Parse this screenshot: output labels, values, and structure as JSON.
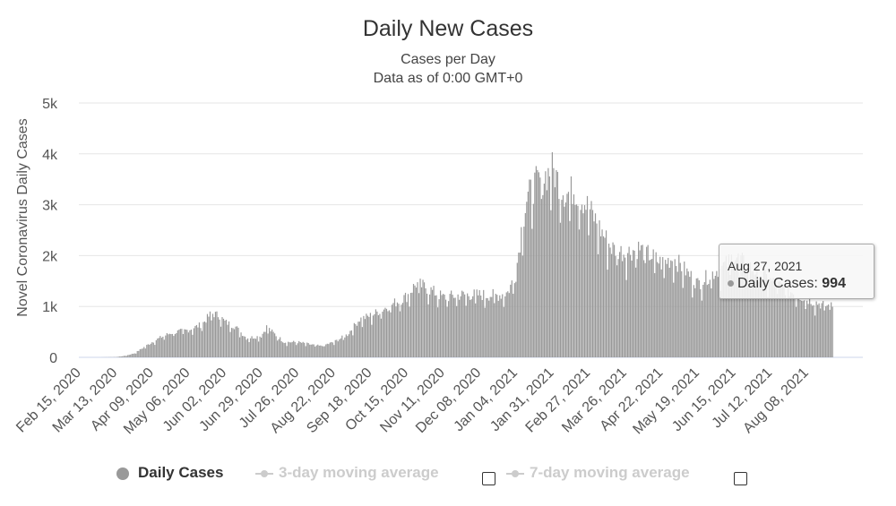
{
  "chart_data": {
    "type": "bar",
    "title": "Daily New Cases",
    "subtitle_lines": [
      "Cases per Day",
      "Data as of 0:00 GMT+0"
    ],
    "ylabel": "Novel Coronavirus Daily Cases",
    "xlabel": "",
    "ylim": [
      0,
      5000
    ],
    "yticks": [
      "0",
      "1k",
      "2k",
      "3k",
      "4k",
      "5k"
    ],
    "ytick_values": [
      0,
      1000,
      2000,
      3000,
      4000,
      5000
    ],
    "x_tick_labels": [
      "Feb 15, 2020",
      "Mar 13, 2020",
      "Apr 09, 2020",
      "May 06, 2020",
      "Jun 02, 2020",
      "Jun 29, 2020",
      "Jul 26, 2020",
      "Aug 22, 2020",
      "Sep 18, 2020",
      "Oct 15, 2020",
      "Nov 11, 2020",
      "Dec 08, 2020",
      "Jan 04, 2021",
      "Jan 31, 2021",
      "Feb 27, 2021",
      "Mar 26, 2021",
      "Apr 22, 2021",
      "May 19, 2021",
      "Jun 15, 2021",
      "Jul 12, 2021",
      "Aug 08, 2021"
    ],
    "series_points": [
      {
        "date": "Feb 15, 2020",
        "value": 0
      },
      {
        "date": "Mar 01, 2020",
        "value": 0
      },
      {
        "date": "Mar 13, 2020",
        "value": 5
      },
      {
        "date": "Mar 20, 2020",
        "value": 30
      },
      {
        "date": "Mar 27, 2020",
        "value": 80
      },
      {
        "date": "Apr 03, 2020",
        "value": 200
      },
      {
        "date": "Apr 09, 2020",
        "value": 300
      },
      {
        "date": "Apr 16, 2020",
        "value": 400
      },
      {
        "date": "Apr 23, 2020",
        "value": 480
      },
      {
        "date": "May 06, 2020",
        "value": 540
      },
      {
        "date": "May 16, 2020",
        "value": 650
      },
      {
        "date": "May 23, 2020",
        "value": 870
      },
      {
        "date": "May 29, 2020",
        "value": 820
      },
      {
        "date": "Jun 02, 2020",
        "value": 700
      },
      {
        "date": "Jun 10, 2020",
        "value": 600
      },
      {
        "date": "Jun 18, 2020",
        "value": 380
      },
      {
        "date": "Jun 24, 2020",
        "value": 400
      },
      {
        "date": "Jun 29, 2020",
        "value": 420
      },
      {
        "date": "Jul 03, 2020",
        "value": 600
      },
      {
        "date": "Jul 08, 2020",
        "value": 480
      },
      {
        "date": "Jul 16, 2020",
        "value": 300
      },
      {
        "date": "Jul 26, 2020",
        "value": 300
      },
      {
        "date": "Aug 05, 2020",
        "value": 250
      },
      {
        "date": "Aug 12, 2020",
        "value": 220
      },
      {
        "date": "Aug 22, 2020",
        "value": 300
      },
      {
        "date": "Sep 01, 2020",
        "value": 450
      },
      {
        "date": "Sep 10, 2020",
        "value": 750
      },
      {
        "date": "Sep 18, 2020",
        "value": 820
      },
      {
        "date": "Oct 01, 2020",
        "value": 1000
      },
      {
        "date": "Oct 15, 2020",
        "value": 1200
      },
      {
        "date": "Oct 22, 2020",
        "value": 1450
      },
      {
        "date": "Oct 29, 2020",
        "value": 1380
      },
      {
        "date": "Nov 11, 2020",
        "value": 1180
      },
      {
        "date": "Nov 25, 2020",
        "value": 1230
      },
      {
        "date": "Dec 08, 2020",
        "value": 1230
      },
      {
        "date": "Dec 22, 2020",
        "value": 1220
      },
      {
        "date": "Dec 29, 2020",
        "value": 1280
      },
      {
        "date": "Jan 04, 2021",
        "value": 1650
      },
      {
        "date": "Jan 08, 2021",
        "value": 2500
      },
      {
        "date": "Jan 12, 2021",
        "value": 3100
      },
      {
        "date": "Jan 18, 2021",
        "value": 3400
      },
      {
        "date": "Jan 25, 2021",
        "value": 3550
      },
      {
        "date": "Jan 31, 2021",
        "value": 3700
      },
      {
        "date": "Feb 04, 2021",
        "value": 3500
      },
      {
        "date": "Feb 10, 2021",
        "value": 3200
      },
      {
        "date": "Feb 16, 2021",
        "value": 3300
      },
      {
        "date": "Feb 27, 2021",
        "value": 2950
      },
      {
        "date": "Mar 08, 2021",
        "value": 2500
      },
      {
        "date": "Mar 16, 2021",
        "value": 2150
      },
      {
        "date": "Mar 26, 2021",
        "value": 2050
      },
      {
        "date": "Apr 05, 2021",
        "value": 2150
      },
      {
        "date": "Apr 14, 2021",
        "value": 2000
      },
      {
        "date": "Apr 22, 2021",
        "value": 1850
      },
      {
        "date": "May 01, 2021",
        "value": 1950
      },
      {
        "date": "May 10, 2021",
        "value": 1700
      },
      {
        "date": "May 19, 2021",
        "value": 1450
      },
      {
        "date": "May 30, 2021",
        "value": 1650
      },
      {
        "date": "Jun 10, 2021",
        "value": 1850
      },
      {
        "date": "Jun 15, 2021",
        "value": 2000
      },
      {
        "date": "Jun 25, 2021",
        "value": 1800
      },
      {
        "date": "Jul 12, 2021",
        "value": 1500
      },
      {
        "date": "Jul 26, 2021",
        "value": 1300
      },
      {
        "date": "Aug 08, 2021",
        "value": 1150
      },
      {
        "date": "Aug 18, 2021",
        "value": 1050
      },
      {
        "date": "Aug 27, 2021",
        "value": 994
      }
    ],
    "color": "#999999",
    "grid": true,
    "legend_placement": "bottom"
  },
  "tooltip": {
    "date": "Aug 27, 2021",
    "series_name": "Daily Cases:",
    "value": "994"
  },
  "legend": {
    "items": [
      {
        "label": "Daily Cases",
        "active": true
      },
      {
        "label": "3-day moving average",
        "active": false
      },
      {
        "label": "7-day moving average",
        "active": false
      }
    ]
  },
  "colors": {
    "bars": "#999999",
    "grid": "#e6e6e6",
    "inactive": "#cccccc"
  }
}
